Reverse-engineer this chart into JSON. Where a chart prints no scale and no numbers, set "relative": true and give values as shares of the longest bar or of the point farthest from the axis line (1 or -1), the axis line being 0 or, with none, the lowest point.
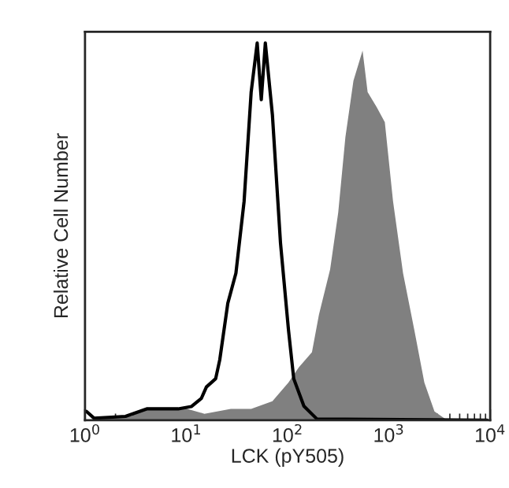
{
  "chart_data": {
    "type": "line",
    "relative": true,
    "xlabel": "LCK (pY505)",
    "ylabel": "Relative Cell Number",
    "log": "x",
    "tick_labels": "x",
    "grid": false,
    "legend": false,
    "xlim": [
      1,
      10000
    ],
    "xticks": [
      {
        "value": 1,
        "label": "10$^{0}$"
      },
      {
        "value": 10,
        "label": "10$^{1}$"
      },
      {
        "value": 100,
        "label": "10$^{2}$"
      },
      {
        "value": 1000,
        "label": "10$^{3}$"
      },
      {
        "value": 10000,
        "label": "10$^{4}$"
      }
    ],
    "series": [
      {
        "type": "area",
        "color": "#808080",
        "x": [
          1,
          2.82,
          4.07,
          9.33,
          15.1,
          27.5,
          43.7,
          70.8,
          102,
          129,
          174,
          204,
          263,
          316,
          372,
          447,
          550,
          617,
          759,
          912,
          1100,
          1380,
          1780,
          2240,
          2820,
          3630,
          9330
        ],
        "values": [
          0,
          0.01,
          0.03,
          0.033,
          0.017,
          0.03,
          0.03,
          0.05,
          0.1,
          0.14,
          0.18,
          0.28,
          0.4,
          0.55,
          0.75,
          0.9,
          0.98,
          0.87,
          0.83,
          0.79,
          0.58,
          0.39,
          0.24,
          0.1,
          0.023,
          0.003,
          0
        ]
      },
      {
        "color": "#000000",
        "x": [
          1.035,
          1.23,
          2.51,
          4.07,
          8.32,
          11.2,
          14.1,
          15.8,
          19.5,
          21.4,
          25.7,
          30.9,
          37.2,
          43.7,
          50.1,
          55.0,
          60.3,
          70.8,
          85.1,
          102,
          115,
          145,
          195,
          9330
        ],
        "values": [
          0.023,
          0.005,
          0.01,
          0.03,
          0.03,
          0.036,
          0.058,
          0.088,
          0.11,
          0.16,
          0.31,
          0.39,
          0.58,
          0.87,
          1.0,
          0.85,
          1.0,
          0.81,
          0.47,
          0.24,
          0.11,
          0.037,
          0.003,
          0
        ]
      }
    ]
  }
}
